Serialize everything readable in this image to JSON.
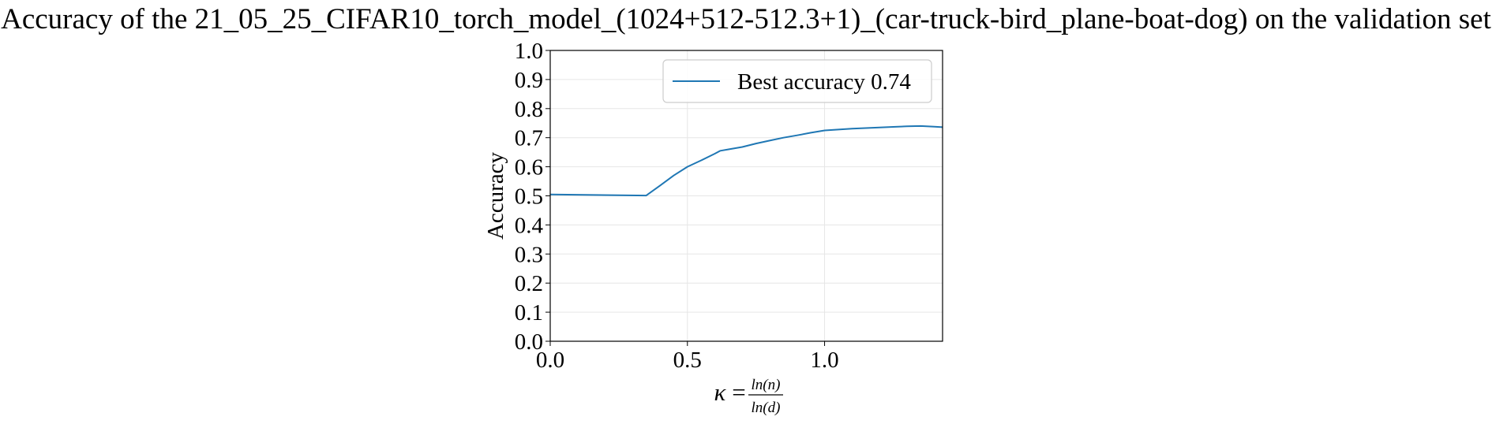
{
  "chart_data": {
    "type": "line",
    "title": "Accuracy of the 21_05_25_CIFAR10_torch_model_(1024+512-512.3+1)_(car-truck-bird_plane-boat-dog) on the validation set",
    "xlabel": {
      "symbol": "κ",
      "equals": "=",
      "numerator": "ln(n)",
      "denominator": "ln(d)"
    },
    "ylabel": "Accuracy",
    "xlim": [
      0.0,
      1.43
    ],
    "ylim": [
      0.0,
      1.0
    ],
    "xticks": [
      {
        "value": 0.0,
        "label": "0.0"
      },
      {
        "value": 0.5,
        "label": "0.5"
      },
      {
        "value": 1.0,
        "label": "1.0"
      }
    ],
    "yticks": [
      {
        "value": 0.0,
        "label": "0.0"
      },
      {
        "value": 0.1,
        "label": "0.1"
      },
      {
        "value": 0.2,
        "label": "0.2"
      },
      {
        "value": 0.3,
        "label": "0.3"
      },
      {
        "value": 0.4,
        "label": "0.4"
      },
      {
        "value": 0.5,
        "label": "0.5"
      },
      {
        "value": 0.6,
        "label": "0.6"
      },
      {
        "value": 0.7,
        "label": "0.7"
      },
      {
        "value": 0.8,
        "label": "0.8"
      },
      {
        "value": 0.9,
        "label": "0.9"
      },
      {
        "value": 1.0,
        "label": "1.0"
      }
    ],
    "grid": true,
    "legend_position": "top-right",
    "series": [
      {
        "name": "Best accuracy 0.74",
        "color": "#1f77b4",
        "x": [
          0.0,
          0.35,
          0.4,
          0.45,
          0.5,
          0.55,
          0.6,
          0.62,
          0.65,
          0.7,
          0.75,
          0.8,
          0.85,
          0.9,
          0.95,
          1.0,
          1.05,
          1.1,
          1.15,
          1.2,
          1.25,
          1.3,
          1.35,
          1.4,
          1.43
        ],
        "y": [
          0.505,
          0.501,
          0.535,
          0.57,
          0.6,
          0.622,
          0.645,
          0.655,
          0.66,
          0.668,
          0.68,
          0.69,
          0.7,
          0.708,
          0.717,
          0.725,
          0.728,
          0.731,
          0.733,
          0.735,
          0.737,
          0.739,
          0.74,
          0.738,
          0.736
        ]
      }
    ]
  }
}
